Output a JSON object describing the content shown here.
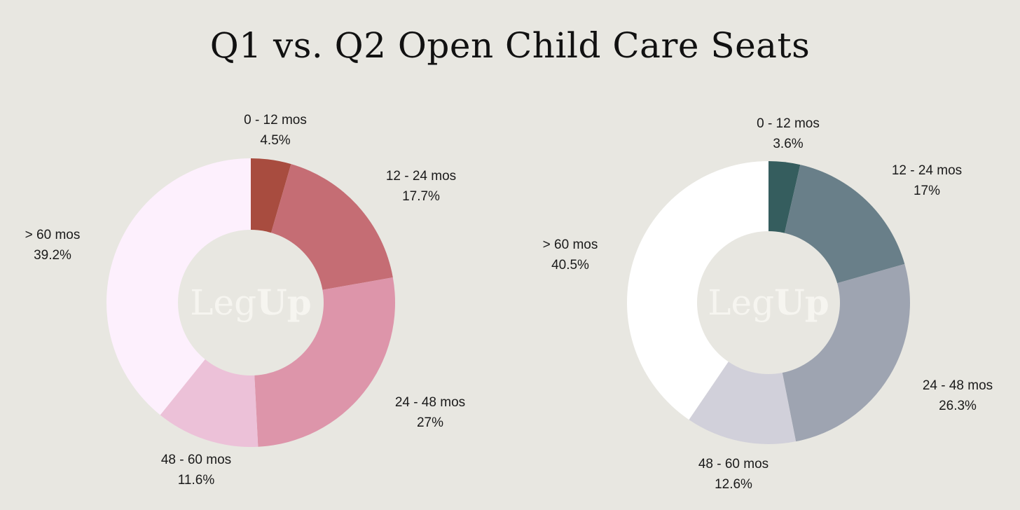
{
  "title": "Q1 vs. Q2 Open Child Care Seats",
  "logo": {
    "light": "Leg",
    "bold": "Up"
  },
  "chart_data": [
    {
      "type": "pie",
      "style": "donut",
      "title": "",
      "slices": [
        {
          "label": "0 - 12 mos",
          "value_text": "4.5%",
          "value": 4.5,
          "color": "#a84c3f"
        },
        {
          "label": "12 - 24 mos",
          "value_text": "17.7%",
          "value": 17.7,
          "color": "#c56d74"
        },
        {
          "label": "24 - 48 mos",
          "value_text": "27%",
          "value": 27.0,
          "color": "#dd95aa"
        },
        {
          "label": "48 - 60 mos",
          "value_text": "11.6%",
          "value": 11.6,
          "color": "#ecc1d8"
        },
        {
          "label": "> 60 mos",
          "value_text": "39.2%",
          "value": 39.2,
          "color": "#fdf0fd"
        }
      ],
      "hole_color": "#e8e7e1"
    },
    {
      "type": "pie",
      "style": "donut",
      "title": "",
      "slices": [
        {
          "label": "0 - 12 mos",
          "value_text": "3.6%",
          "value": 3.6,
          "color": "#355d5e"
        },
        {
          "label": "12 - 24 mos",
          "value_text": "17%",
          "value": 17.0,
          "color": "#697f89"
        },
        {
          "label": "24 - 48 mos",
          "value_text": "26.3%",
          "value": 26.3,
          "color": "#9ea4b1"
        },
        {
          "label": "48 - 60 mos",
          "value_text": "12.6%",
          "value": 12.6,
          "color": "#d1d0da"
        },
        {
          "label": "> 60 mos",
          "value_text": "40.5%",
          "value": 40.5,
          "color": "#ffffff"
        }
      ],
      "hole_color": "#e8e7e1"
    }
  ]
}
